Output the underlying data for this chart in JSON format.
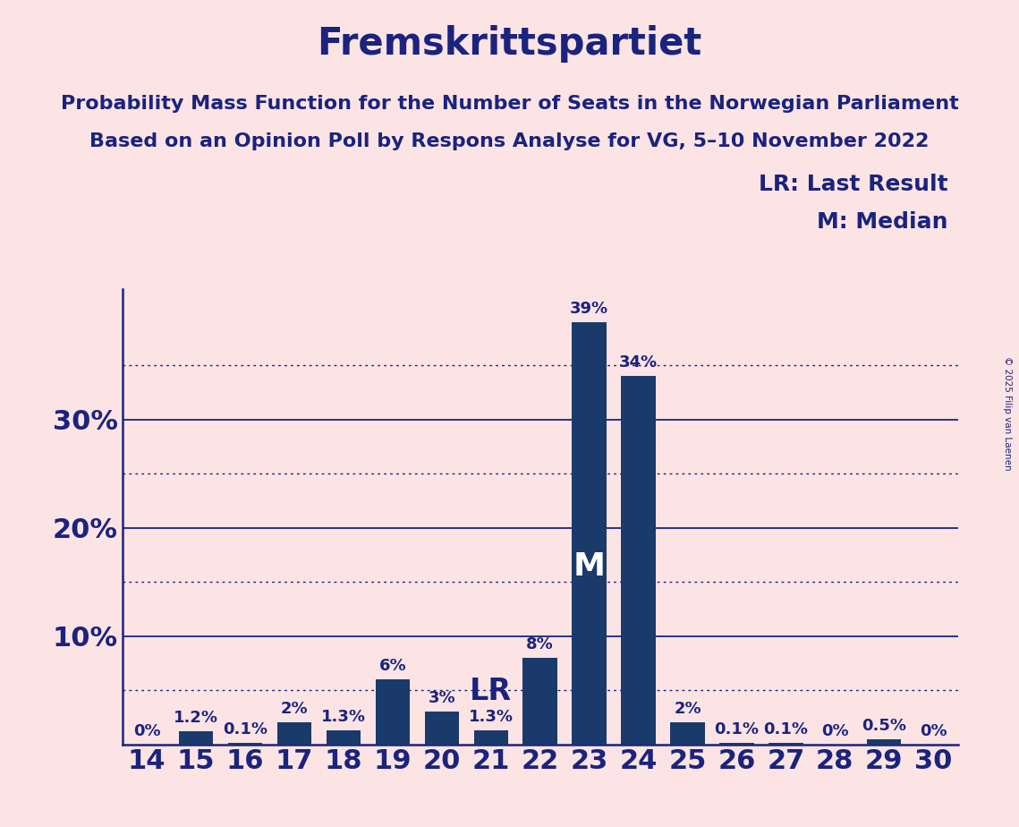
{
  "title": "Fremskrittspartiet",
  "subtitle1": "Probability Mass Function for the Number of Seats in the Norwegian Parliament",
  "subtitle2": "Based on an Opinion Poll by Respons Analyse for VG, 5–10 November 2022",
  "copyright": "© 2025 Filip van Laenen",
  "seats": [
    14,
    15,
    16,
    17,
    18,
    19,
    20,
    21,
    22,
    23,
    24,
    25,
    26,
    27,
    28,
    29,
    30
  ],
  "probabilities": [
    0.0,
    1.2,
    0.1,
    2.0,
    1.3,
    6.0,
    3.0,
    1.3,
    8.0,
    39.0,
    34.0,
    2.0,
    0.1,
    0.1,
    0.0,
    0.5,
    0.0
  ],
  "bar_color": "#1a3a6b",
  "background_color": "#fce4e4",
  "text_color": "#1a237e",
  "median_seat": 23,
  "lr_seat": 21,
  "legend_lr": "LR: Last Result",
  "legend_m": "M: Median",
  "ylim": [
    0,
    42
  ],
  "solid_yticks": [
    10,
    20,
    30
  ],
  "dotted_yticks": [
    5,
    15,
    25,
    35
  ],
  "title_fontsize": 30,
  "subtitle_fontsize": 16,
  "tick_fontsize": 22,
  "bar_label_fontsize": 13,
  "legend_fontsize": 18,
  "marker_fontsize": 26
}
